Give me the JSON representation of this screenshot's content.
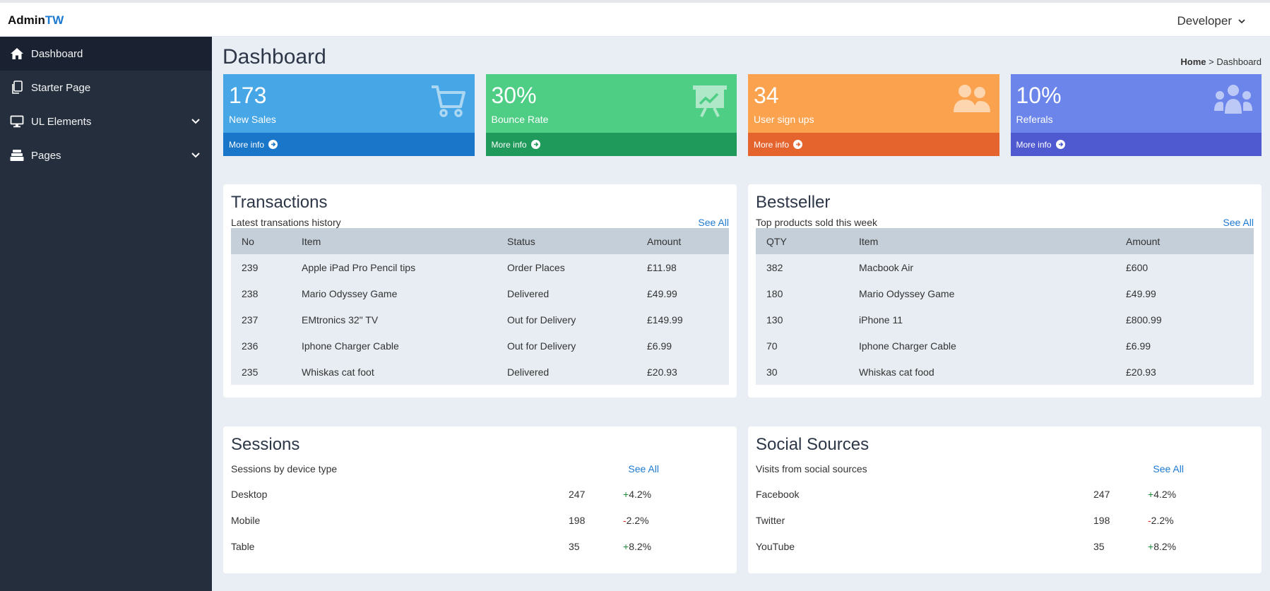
{
  "app": {
    "brand_main": "Admin",
    "brand_accent": "TW",
    "user": "Developer"
  },
  "sidebar": {
    "items": [
      {
        "label": "Dashboard",
        "icon": "home-icon"
      },
      {
        "label": "Starter Page",
        "icon": "copy-icon"
      },
      {
        "label": "UL Elements",
        "icon": "desktop-icon"
      },
      {
        "label": "Pages",
        "icon": "layers-icon"
      }
    ]
  },
  "page": {
    "title": "Dashboard",
    "breadcrumb_home": "Home",
    "breadcrumb_sep": ">",
    "breadcrumb_current": "Dashboard"
  },
  "cards": [
    {
      "value": "173",
      "label": "New Sales",
      "more": "More info",
      "icon": "cart-icon",
      "top_color": "#47a6e6",
      "bottom_color": "#1a76c8"
    },
    {
      "value": "30%",
      "label": "Bounce Rate",
      "more": "More info",
      "icon": "presentation-chart-icon",
      "top_color": "#4ece85",
      "bottom_color": "#209a5b"
    },
    {
      "value": "34",
      "label": "User sign ups",
      "more": "More info",
      "icon": "users-icon",
      "top_color": "#fba24e",
      "bottom_color": "#e5632c"
    },
    {
      "value": "10%",
      "label": "Referals",
      "more": "More info",
      "icon": "user-group-icon",
      "top_color": "#6c85ea",
      "bottom_color": "#4f59d0"
    }
  ],
  "transactions": {
    "title": "Transactions",
    "subtitle": "Latest transations history",
    "see_all": "See All",
    "columns": [
      "No",
      "Item",
      "Status",
      "Amount"
    ],
    "rows": [
      [
        "239",
        "Apple iPad Pro Pencil tips",
        "Order Places",
        "£11.98"
      ],
      [
        "238",
        "Mario Odyssey Game",
        "Delivered",
        "£49.99"
      ],
      [
        "237",
        "EMtronics 32\" TV",
        "Out for Delivery",
        "£149.99"
      ],
      [
        "236",
        "Iphone Charger Cable",
        "Out for Delivery",
        "£6.99"
      ],
      [
        "235",
        "Whiskas cat foot",
        "Delivered",
        "£20.93"
      ]
    ]
  },
  "bestseller": {
    "title": "Bestseller",
    "subtitle": "Top products sold this week",
    "see_all": "See All",
    "columns": [
      "QTY",
      "Item",
      "Amount"
    ],
    "rows": [
      [
        "382",
        "Macbook Air",
        "£600"
      ],
      [
        "180",
        "Mario Odyssey Game",
        "£49.99"
      ],
      [
        "130",
        "iPhone 11",
        "£800.99"
      ],
      [
        "70",
        "Iphone Charger Cable",
        "£6.99"
      ],
      [
        "30",
        "Whiskas cat food",
        "£20.93"
      ]
    ]
  },
  "sessions": {
    "title": "Sessions",
    "subtitle": "Sessions by device type",
    "see_all": "See All",
    "rows": [
      {
        "name": "Desktop",
        "count": "247",
        "change": "+4.2%",
        "sign": "+",
        "pct": "4.2%",
        "trend": "up"
      },
      {
        "name": "Mobile",
        "count": "198",
        "change": "-2.2%",
        "sign": "-",
        "pct": "2.2%",
        "trend": "down"
      },
      {
        "name": "Table",
        "count": "35",
        "change": "+8.2%",
        "sign": "+",
        "pct": "8.2%",
        "trend": "up"
      }
    ]
  },
  "social": {
    "title": "Social Sources",
    "subtitle": "Visits from social sources",
    "see_all": "See All",
    "rows": [
      {
        "name": "Facebook",
        "count": "247",
        "change": "+4.2%",
        "sign": "+",
        "pct": "4.2%",
        "trend": "up"
      },
      {
        "name": "Twitter",
        "count": "198",
        "change": "-2.2%",
        "sign": "-",
        "pct": "2.2%",
        "trend": "down"
      },
      {
        "name": "YouTube",
        "count": "35",
        "change": "+8.2%",
        "sign": "+",
        "pct": "8.2%",
        "trend": "up"
      }
    ]
  }
}
